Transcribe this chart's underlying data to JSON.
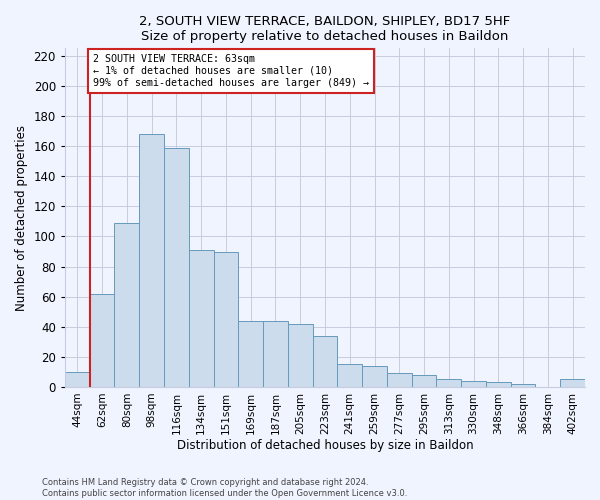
{
  "title": "2, SOUTH VIEW TERRACE, BAILDON, SHIPLEY, BD17 5HF",
  "subtitle": "Size of property relative to detached houses in Baildon",
  "xlabel": "Distribution of detached houses by size in Baildon",
  "ylabel": "Number of detached properties",
  "categories": [
    "44sqm",
    "62sqm",
    "80sqm",
    "98sqm",
    "116sqm",
    "134sqm",
    "151sqm",
    "169sqm",
    "187sqm",
    "205sqm",
    "223sqm",
    "241sqm",
    "259sqm",
    "277sqm",
    "295sqm",
    "313sqm",
    "330sqm",
    "348sqm",
    "366sqm",
    "384sqm",
    "402sqm"
  ],
  "values": [
    10,
    62,
    109,
    168,
    159,
    91,
    90,
    44,
    44,
    42,
    34,
    15,
    14,
    9,
    8,
    5,
    4,
    3,
    2,
    0,
    5
  ],
  "bar_color": "#ccdcec",
  "bar_edge_color": "#6699bb",
  "vline_color": "#cc2222",
  "vline_x_index": 1,
  "annotation_text": "2 SOUTH VIEW TERRACE: 63sqm\n← 1% of detached houses are smaller (10)\n99% of semi-detached houses are larger (849) →",
  "annotation_box_color": "white",
  "annotation_box_edge_color": "#cc2222",
  "ylim": [
    0,
    225
  ],
  "yticks": [
    0,
    20,
    40,
    60,
    80,
    100,
    120,
    140,
    160,
    180,
    200,
    220
  ],
  "footer1": "Contains HM Land Registry data © Crown copyright and database right 2024.",
  "footer2": "Contains public sector information licensed under the Open Government Licence v3.0.",
  "bg_color": "#f0f4ff",
  "grid_color": "#c8cce0"
}
